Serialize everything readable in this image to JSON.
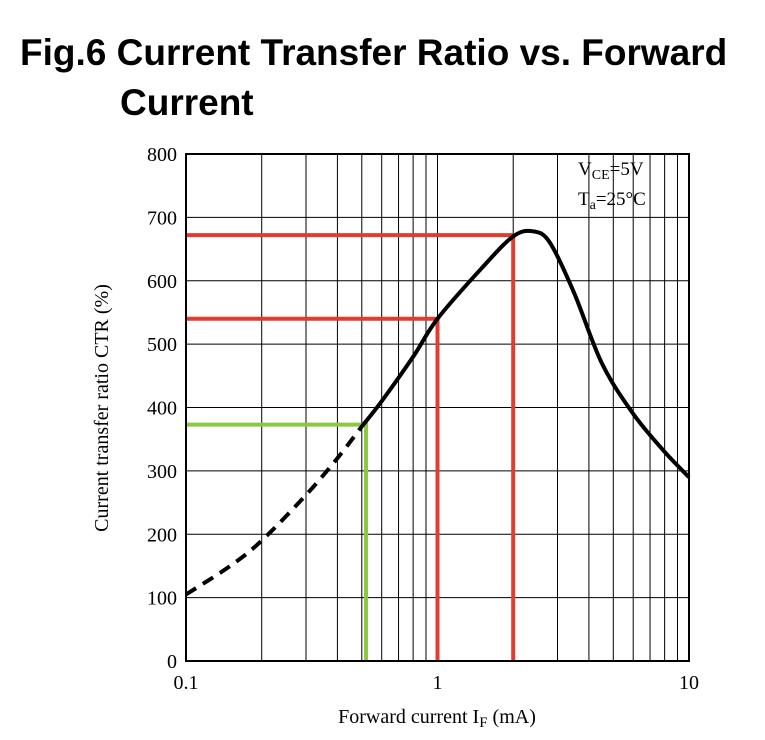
{
  "title": {
    "line1": "Fig.6 Current Transfer Ratio vs. Forward",
    "line2": "Current"
  },
  "chart_data": {
    "type": "line",
    "xlabel": {
      "main": "Forward current I",
      "sub": "F",
      "unit": " (mA)"
    },
    "ylabel": "Current transfer ratio CTR (%)",
    "x_scale": "log",
    "xlim": [
      0.1,
      10
    ],
    "ylim": [
      0,
      800
    ],
    "x_ticks": [
      0.1,
      1,
      10
    ],
    "x_tick_labels": [
      "0.1",
      "1",
      "10"
    ],
    "y_ticks": [
      0,
      100,
      200,
      300,
      400,
      500,
      600,
      700,
      800
    ],
    "y_tick_labels": [
      "0",
      "100",
      "200",
      "300",
      "400",
      "500",
      "600",
      "700",
      "800"
    ],
    "grid": true,
    "conditions": {
      "line1": {
        "main": "V",
        "sub": "CE",
        "rest": "=5V"
      },
      "line2": {
        "main": "T",
        "sub": "a",
        "rest": "=25°C"
      }
    },
    "series": [
      {
        "style": "dashed",
        "color": "#000000",
        "points": [
          [
            0.1,
            105
          ],
          [
            0.15,
            150
          ],
          [
            0.2,
            190
          ],
          [
            0.3,
            262
          ],
          [
            0.4,
            320
          ],
          [
            0.5,
            370
          ]
        ]
      },
      {
        "style": "solid",
        "color": "#000000",
        "points": [
          [
            0.5,
            370
          ],
          [
            0.6,
            410
          ],
          [
            0.8,
            480
          ],
          [
            1.0,
            540
          ],
          [
            1.5,
            620
          ],
          [
            2.0,
            670
          ],
          [
            2.4,
            678
          ],
          [
            2.8,
            660
          ],
          [
            3.5,
            580
          ],
          [
            4.5,
            470
          ],
          [
            6.0,
            390
          ],
          [
            8.0,
            330
          ],
          [
            10.0,
            290
          ]
        ]
      }
    ],
    "annotations": [
      {
        "x": 0.52,
        "y": 373,
        "color": "#8dc63f"
      },
      {
        "x": 1.0,
        "y": 540,
        "color": "#e03c31"
      },
      {
        "x": 2.0,
        "y": 672,
        "color": "#e03c31"
      }
    ]
  }
}
